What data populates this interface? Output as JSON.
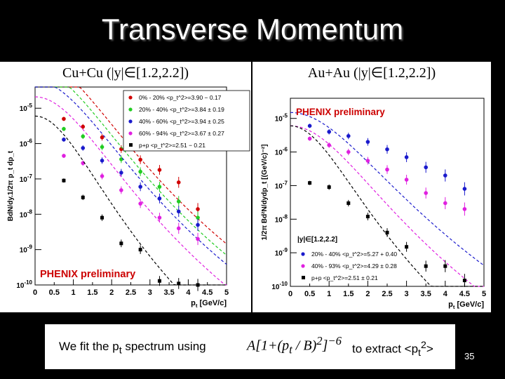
{
  "slide": {
    "title": "Transverse Momentum",
    "bottom_text_1": "We fit the p",
    "bottom_text_1_sub": "t",
    "bottom_text_1_end": " spectrum using",
    "formula": "A[1+(p",
    "formula_sub": "t",
    "formula_mid": " / B)",
    "formula_sup": "2",
    "formula_end": "]",
    "formula_exp": "−6",
    "bottom_text_2": "to extract <p",
    "bottom_text_2_sub": "t",
    "bottom_text_2_sup": "2",
    "bottom_text_2_end": ">",
    "page_number": "35"
  },
  "chart_data": [
    {
      "type": "scatter",
      "panel_title": "Cu+Cu (|y|∈[1.2,2.2])",
      "ylabel": "BdN/dy.1/2π p_t dp_t",
      "xlabel": "p_t [GeV/c]",
      "xlim": [
        0,
        5
      ],
      "ylim_log10": [
        -10,
        -4.4
      ],
      "xticks": [
        "0",
        "0.5",
        "1",
        "1.5",
        "2",
        "2.5",
        "3",
        "3.5",
        "4",
        "4.5",
        "5"
      ],
      "yticks": [
        {
          "exp": -5,
          "label": "10",
          "sup": "-5"
        },
        {
          "exp": -6,
          "label": "10",
          "sup": "-6"
        },
        {
          "exp": -7,
          "label": "10",
          "sup": "-7"
        },
        {
          "exp": -8,
          "label": "10",
          "sup": "-8"
        },
        {
          "exp": -9,
          "label": "10",
          "sup": "-9"
        },
        {
          "exp": -10,
          "label": "10",
          "sup": "-10"
        }
      ],
      "annotation": "PHENIX preliminary",
      "annotation_color": "#cc0000",
      "legend_position": "top-right",
      "series": [
        {
          "name": "0% - 20% <p_t^2>=3.90 − 0.17",
          "color": "#d00000",
          "marker": "circle",
          "A": 0.00024,
          "B2": 3.9,
          "x": [
            0.75,
            1.25,
            1.75,
            2.25,
            2.75,
            3.25,
            3.75,
            4.25
          ],
          "y": [
            5e-06,
            3e-06,
            1.5e-06,
            7e-07,
            3.5e-07,
            1.8e-07,
            8e-08,
            1.4e-08
          ]
        },
        {
          "name": "20% - 40% <p_t^2>=3.84 ± 0.19",
          "color": "#22cc22",
          "marker": "circle",
          "A": 0.000125,
          "B2": 3.84,
          "x": [
            0.75,
            1.25,
            1.75,
            2.25,
            2.75,
            3.25,
            3.75,
            4.25
          ],
          "y": [
            2.6e-06,
            1.6e-06,
            8e-07,
            3.6e-07,
            1.6e-07,
            6e-08,
            2.3e-08,
            8e-09
          ]
        },
        {
          "name": "40% - 60% <p_t^2>=3.94 ± 0.25",
          "color": "#1a1acc",
          "marker": "circle",
          "A": 6e-05,
          "B2": 3.94,
          "x": [
            0.75,
            1.25,
            1.75,
            2.25,
            2.75,
            3.25,
            3.75,
            4.25
          ],
          "y": [
            1.3e-06,
            7.5e-07,
            3.3e-07,
            1.5e-07,
            6e-08,
            2.8e-08,
            1.2e-08,
            5e-09
          ]
        },
        {
          "name": "60% - 94% <p_t^2>=3.67 ± 0.27",
          "color": "#e020e0",
          "marker": "circle",
          "A": 2.1e-05,
          "B2": 3.67,
          "x": [
            0.75,
            1.25,
            1.75,
            2.25,
            2.75,
            3.25,
            3.75,
            4.25
          ],
          "y": [
            4.5e-07,
            2.8e-07,
            1.2e-07,
            4.8e-08,
            2e-08,
            8e-09,
            4e-09,
            2e-09
          ]
        },
        {
          "name": "p+p <p_t^2>=2.51 − 0.21",
          "color": "#000000",
          "marker": "square",
          "A": 6e-06,
          "B2": 2.51,
          "x": [
            0.75,
            1.25,
            1.75,
            2.25,
            2.75,
            3.25,
            3.75,
            4.25
          ],
          "y": [
            9e-08,
            3e-08,
            8e-09,
            1.5e-09,
            1e-09,
            1.3e-10,
            1.1e-10,
            1e-10
          ]
        }
      ]
    },
    {
      "type": "scatter",
      "panel_title": "Au+Au (|y|∈[1.2,2.2])",
      "ylabel": "1/2π Bd²N/dydp_t [(GeV/c)⁻²]",
      "xlabel": "p_t [GeV/c]",
      "xlim": [
        0,
        5
      ],
      "ylim_log10": [
        -10,
        -4.4
      ],
      "xticks": [
        "0",
        "0.5",
        "1",
        "1.5",
        "2",
        "2.5",
        "3",
        "3.5",
        "4",
        "4.5",
        "5"
      ],
      "yticks": [
        {
          "exp": -5,
          "label": "10",
          "sup": "-5"
        },
        {
          "exp": -6,
          "label": "10",
          "sup": "-6"
        },
        {
          "exp": -7,
          "label": "10",
          "sup": "-7"
        },
        {
          "exp": -8,
          "label": "10",
          "sup": "-8"
        },
        {
          "exp": -9,
          "label": "10",
          "sup": "-9"
        },
        {
          "exp": -10,
          "label": "10",
          "sup": "-10"
        }
      ],
      "annotation": "PHENIX preliminary",
      "annotation_color": "#cc0000",
      "legend_title": "|y|∈[1.2,2.2]",
      "legend_position": "bottom-left",
      "series": [
        {
          "name": "20% - 40% <p_t^2>=5.27 + 0.40",
          "color": "#1a1acc",
          "marker": "circle",
          "A": 1.5e-05,
          "B2": 5.27,
          "x": [
            0.5,
            1.0,
            1.5,
            2.0,
            2.5,
            3.0,
            3.5,
            4.0,
            4.5
          ],
          "y": [
            6e-06,
            4e-06,
            3e-06,
            2e-06,
            1.2e-06,
            7e-07,
            3.5e-07,
            2e-07,
            8e-08
          ]
        },
        {
          "name": "40% - 93% <p_t^2>=4.29 ± 0.28",
          "color": "#e020e0",
          "marker": "circle",
          "A": 6e-06,
          "B2": 4.29,
          "x": [
            0.5,
            1.0,
            1.5,
            2.0,
            2.5,
            3.0,
            3.5,
            4.0,
            4.5
          ],
          "y": [
            2.5e-06,
            1.6e-06,
            1e-06,
            5.5e-07,
            3e-07,
            1.5e-07,
            6e-08,
            3e-08,
            2e-08
          ]
        },
        {
          "name": "p+p <p_t^2>=2.51 ± 0.21",
          "color": "#000000",
          "marker": "square",
          "A": 6e-06,
          "B2": 2.51,
          "x": [
            0.5,
            1.0,
            1.5,
            2.0,
            2.5,
            3.0,
            3.5,
            4.0,
            4.5
          ],
          "y": [
            1.2e-07,
            9e-08,
            3e-08,
            1.2e-08,
            4e-09,
            1.5e-09,
            4e-10,
            4e-10,
            1.5e-10
          ]
        }
      ]
    }
  ]
}
